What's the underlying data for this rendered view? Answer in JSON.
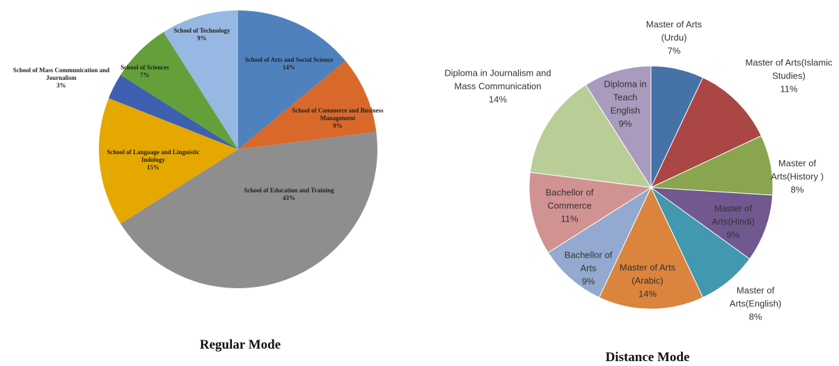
{
  "chart_data": [
    {
      "type": "pie",
      "title": "Regular Mode",
      "categories": [
        "School of Arts and Social Science",
        "School of Commerce and Business Management",
        "School of Education and Training",
        "School of Language and Linguistic Indology",
        "School of Mass Communication and Journalism",
        "School of Sciences",
        "School of Technology"
      ],
      "values": [
        14,
        9,
        43,
        15,
        3,
        7,
        9
      ],
      "value_labels": [
        "14%",
        "9%",
        "43%",
        "15%",
        "3%",
        "7%",
        "9%"
      ],
      "colors": [
        "#4f81bd",
        "#d9692a",
        "#8e8e8e",
        "#e5a800",
        "#3d60b0",
        "#63a03a",
        "#97b8e2"
      ]
    },
    {
      "type": "pie",
      "title": "Distance Mode",
      "categories": [
        "Master of Arts (Urdu)",
        "Master of Arts(Islamic Studies)",
        "Master of Arts(History )",
        "Master of Arts(Hindi)",
        "Master of Arts(English)",
        "Master of Arts (Arabic)",
        "Bachellor of Arts",
        "Bachellor of Commerce",
        "Diploma in Journalism and Mass Communication",
        "Diploma in Teach English"
      ],
      "values": [
        7,
        11,
        8,
        9,
        8,
        14,
        9,
        11,
        14,
        9
      ],
      "value_labels": [
        "7%",
        "11%",
        "8%",
        "9%",
        "8%",
        "14%",
        "9%",
        "11%",
        "14%",
        "9%"
      ],
      "colors": [
        "#4572a7",
        "#aa4643",
        "#89a54e",
        "#71588f",
        "#4198af",
        "#db843d",
        "#93a9cf",
        "#d19392",
        "#b9cd96",
        "#a99bbd"
      ]
    }
  ]
}
